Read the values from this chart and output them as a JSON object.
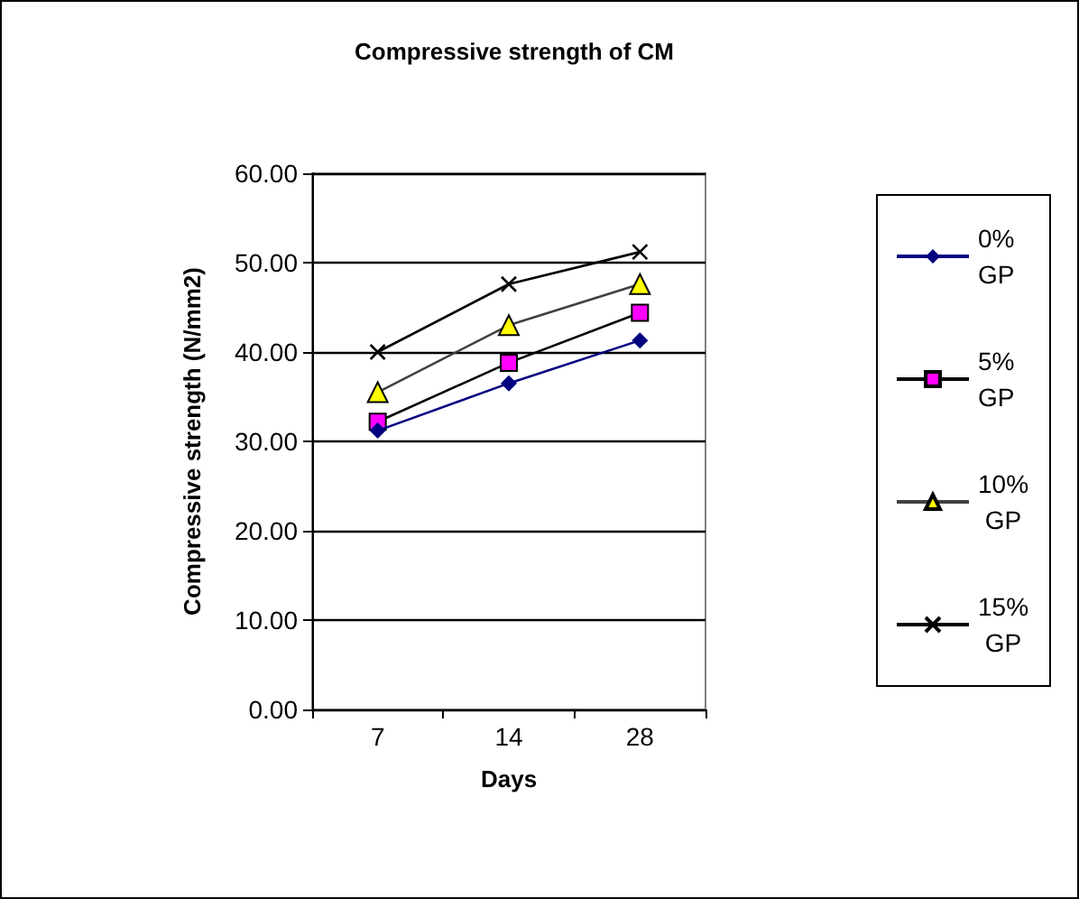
{
  "chart_data": {
    "type": "line",
    "title": "Compressive strength of CM",
    "xlabel": "Days",
    "ylabel": "Compressive strength (N/mm2)",
    "categories": [
      "7",
      "14",
      "28"
    ],
    "series": [
      {
        "name": "0% GP",
        "color": "#000080",
        "marker": "diamond",
        "values": [
          31.2,
          36.5,
          41.3
        ]
      },
      {
        "name": "5% GP",
        "color": "#000000",
        "marker": "square",
        "values": [
          32.2,
          38.8,
          44.4
        ]
      },
      {
        "name": "10% GP",
        "color": "#404040",
        "marker": "triangle",
        "values": [
          35.5,
          43.0,
          47.6
        ]
      },
      {
        "name": "15% GP",
        "color": "#000000",
        "marker": "cross",
        "values": [
          40.0,
          47.6,
          51.2
        ]
      }
    ],
    "ylim": [
      0,
      60
    ],
    "yticks": [
      {
        "value": 0,
        "label": "0.00"
      },
      {
        "value": 10,
        "label": "10.00"
      },
      {
        "value": 20,
        "label": "20.00"
      },
      {
        "value": 30,
        "label": "30.00"
      },
      {
        "value": 40,
        "label": "40.00"
      },
      {
        "value": 50,
        "label": "50.00"
      },
      {
        "value": 60,
        "label": "60.00"
      }
    ],
    "grid": "y",
    "legend": "right"
  }
}
